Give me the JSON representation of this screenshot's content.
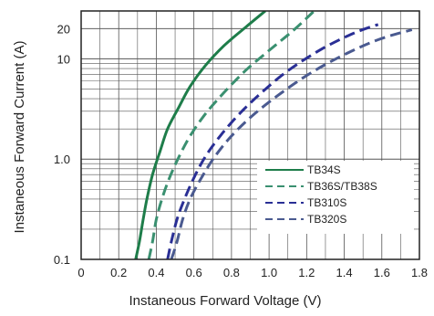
{
  "chart_data": {
    "type": "line",
    "title": "",
    "xlabel": "Instaneous Forward Voltage (V)",
    "ylabel": "Instaneous Forward Current  (A)",
    "x_scale": "linear",
    "y_scale": "log",
    "xlim": [
      0,
      1.8
    ],
    "ylim": [
      0.1,
      30
    ],
    "x_ticks": [
      "0",
      "0.2",
      "0.4",
      "0.6",
      "0.8",
      "1.0",
      "1.2",
      "1.4",
      "1.6",
      "1.8"
    ],
    "y_ticks": [
      {
        "value": 0.1,
        "label": "0.1"
      },
      {
        "value": 1,
        "label": "1.0"
      },
      {
        "value": 10,
        "label": "10"
      },
      {
        "value": 20,
        "label": "20"
      }
    ],
    "grid": true,
    "legend_position": "center-right",
    "series": [
      {
        "name": "TB34S",
        "color": "#1e7d4a",
        "dash": "solid",
        "x": [
          0.29,
          0.31,
          0.33,
          0.35,
          0.38,
          0.42,
          0.46,
          0.52,
          0.58,
          0.66,
          0.76,
          0.88,
          0.98
        ],
        "y": [
          0.1,
          0.15,
          0.25,
          0.4,
          0.7,
          1.2,
          2.0,
          3.3,
          5.3,
          8.5,
          13.5,
          21,
          30
        ]
      },
      {
        "name": "TB36S/TB38S",
        "color": "#3a9070",
        "dash": "dashed",
        "x": [
          0.36,
          0.38,
          0.4,
          0.43,
          0.47,
          0.52,
          0.58,
          0.66,
          0.76,
          0.88,
          1.02,
          1.14,
          1.24
        ],
        "y": [
          0.1,
          0.15,
          0.25,
          0.4,
          0.65,
          1.05,
          1.7,
          2.8,
          4.6,
          7.8,
          13,
          20,
          30
        ]
      },
      {
        "name": "TB310S",
        "color": "#2a2f95",
        "dash": "dashed",
        "x": [
          0.46,
          0.48,
          0.51,
          0.55,
          0.6,
          0.66,
          0.74,
          0.84,
          0.96,
          1.1,
          1.28,
          1.45,
          1.58
        ],
        "y": [
          0.1,
          0.15,
          0.25,
          0.4,
          0.65,
          1.05,
          1.7,
          2.8,
          4.6,
          7.6,
          12.5,
          18,
          22
        ]
      },
      {
        "name": "TB320S",
        "color": "#4a5a90",
        "dash": "dashed",
        "x": [
          0.48,
          0.51,
          0.54,
          0.58,
          0.64,
          0.71,
          0.8,
          0.92,
          1.06,
          1.22,
          1.4,
          1.58,
          1.76
        ],
        "y": [
          0.1,
          0.15,
          0.25,
          0.4,
          0.65,
          1.05,
          1.7,
          2.8,
          4.5,
          7.2,
          11,
          15.5,
          19.5
        ]
      }
    ]
  }
}
